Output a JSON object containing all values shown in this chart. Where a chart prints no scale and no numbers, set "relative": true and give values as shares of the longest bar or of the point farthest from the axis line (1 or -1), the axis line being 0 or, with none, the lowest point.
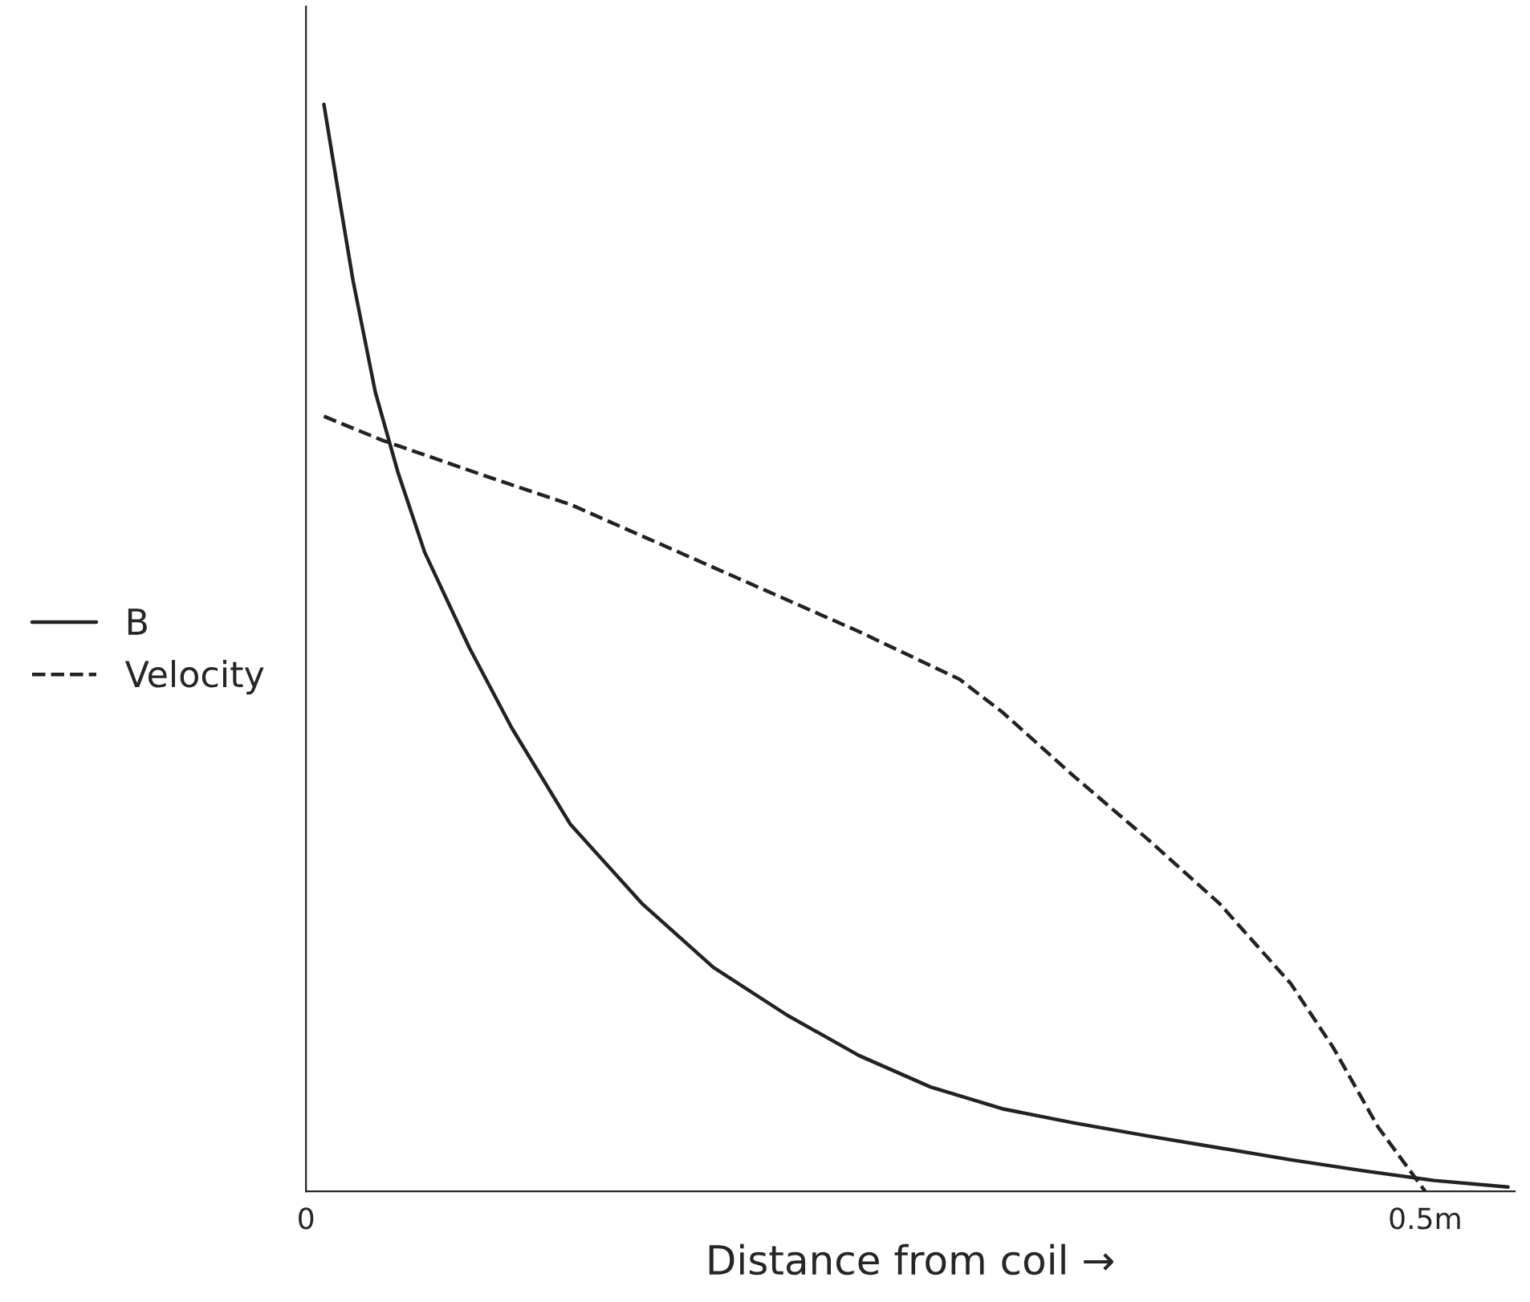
{
  "chart_data": {
    "type": "line",
    "relative": true,
    "xlabel": "Distance from coil →",
    "xlim": [
      0,
      0.54
    ],
    "xticks": [
      0,
      {
        "value": 0.5,
        "label": "0.5m"
      }
    ],
    "tick_labels": "x",
    "legend": "left",
    "grid": false,
    "series": [
      {
        "name": "B",
        "color": "#222222",
        "line_style": "solid",
        "x": [
          0.008,
          0.015,
          0.021,
          0.031,
          0.041,
          0.053,
          0.073,
          0.092,
          0.118,
          0.15,
          0.182,
          0.215,
          0.247,
          0.279,
          0.311,
          0.343,
          0.376,
          0.408,
          0.44,
          0.472,
          0.504,
          0.537
        ],
        "values": [
          1.0,
          0.912,
          0.838,
          0.735,
          0.662,
          0.588,
          0.5,
          0.426,
          0.338,
          0.265,
          0.206,
          0.162,
          0.125,
          0.096,
          0.076,
          0.063,
          0.051,
          0.04,
          0.029,
          0.019,
          0.01,
          0.004
        ]
      },
      {
        "name": "Velocity",
        "color": "#222222",
        "line_style": "dashed",
        "x": [
          0.008,
          0.034,
          0.086,
          0.118,
          0.182,
          0.247,
          0.292,
          0.311,
          0.343,
          0.376,
          0.408,
          0.44,
          0.459,
          0.479,
          0.5
        ],
        "values": [
          0.713,
          0.691,
          0.654,
          0.632,
          0.574,
          0.515,
          0.471,
          0.441,
          0.382,
          0.324,
          0.265,
          0.191,
          0.132,
          0.059,
          0.0
        ]
      }
    ]
  }
}
